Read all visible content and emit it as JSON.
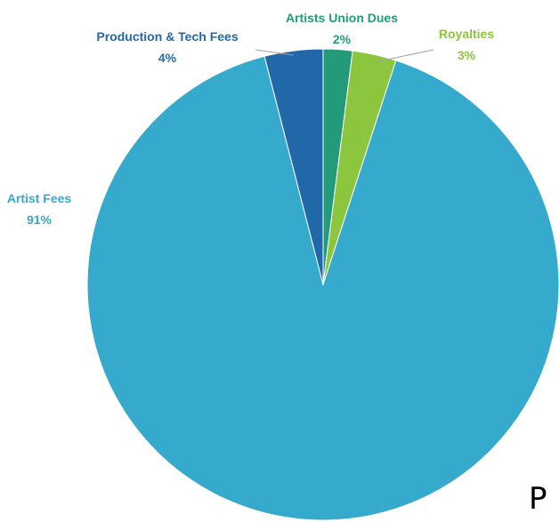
{
  "chart_data": {
    "type": "pie",
    "slices": [
      {
        "label": "Artist Fees",
        "value": 91,
        "value_label": "91%",
        "color": "#35aacd"
      },
      {
        "label": "Production & Tech Fees",
        "value": 4,
        "value_label": "4%",
        "color": "#2068a8"
      },
      {
        "label": "Artists Union Dues",
        "value": 2,
        "value_label": "2%",
        "color": "#239b7b"
      },
      {
        "label": "Royalties",
        "value": 3,
        "value_label": "3%",
        "color": "#8cc63e"
      }
    ],
    "start": "12 o'clock, clockwise from Artists Union Dues",
    "legend": "none (labels outside slices)"
  },
  "stray_text": "P"
}
